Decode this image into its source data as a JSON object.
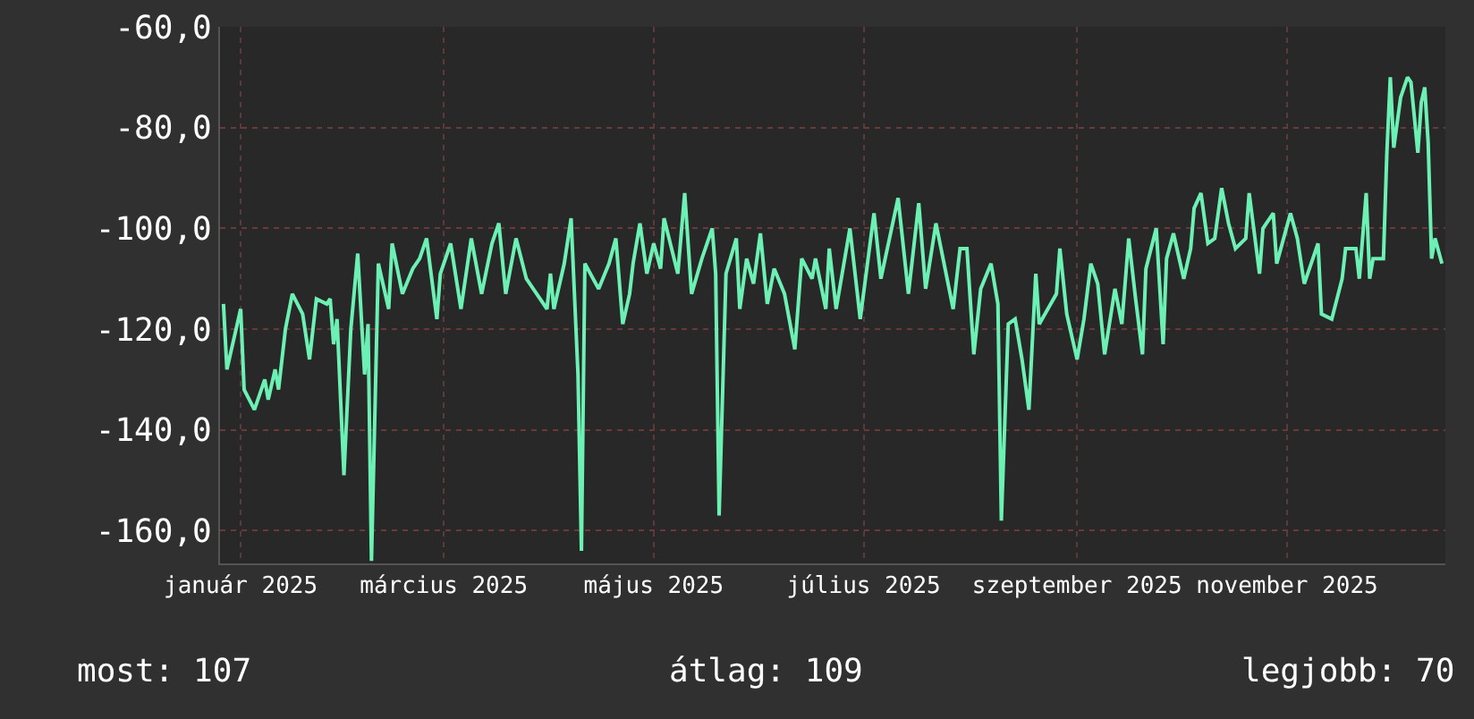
{
  "chart_data": {
    "type": "line",
    "x": [
      "2024-12-27",
      "2024-12-28",
      "2024-12-31",
      "2025-01-01",
      "2025-01-02",
      "2025-01-05",
      "2025-01-08",
      "2025-01-09",
      "2025-01-11",
      "2025-01-12",
      "2025-01-14",
      "2025-01-16",
      "2025-01-19",
      "2025-01-21",
      "2025-01-23",
      "2025-01-26",
      "2025-01-27",
      "2025-01-28",
      "2025-01-29",
      "2025-01-31",
      "2025-02-02",
      "2025-02-04",
      "2025-02-06",
      "2025-02-07",
      "2025-02-08",
      "2025-02-10",
      "2025-02-13",
      "2025-02-14",
      "2025-02-17",
      "2025-02-20",
      "2025-02-22",
      "2025-02-24",
      "2025-02-27",
      "2025-02-28",
      "2025-03-03",
      "2025-03-06",
      "2025-03-09",
      "2025-03-12",
      "2025-03-15",
      "2025-03-17",
      "2025-03-19",
      "2025-03-22",
      "2025-03-25",
      "2025-03-28",
      "2025-03-31",
      "2025-04-01",
      "2025-04-02",
      "2025-04-05",
      "2025-04-07",
      "2025-04-09",
      "2025-04-10",
      "2025-04-11",
      "2025-04-15",
      "2025-04-18",
      "2025-04-20",
      "2025-04-22",
      "2025-04-24",
      "2025-04-25",
      "2025-04-27",
      "2025-04-29",
      "2025-05-01",
      "2025-05-03",
      "2025-05-04",
      "2025-05-08",
      "2025-05-10",
      "2025-05-12",
      "2025-05-15",
      "2025-05-18",
      "2025-05-19",
      "2025-05-20",
      "2025-05-22",
      "2025-05-25",
      "2025-05-26",
      "2025-05-28",
      "2025-05-30",
      "2025-06-01",
      "2025-06-03",
      "2025-06-05",
      "2025-06-08",
      "2025-06-11",
      "2025-06-13",
      "2025-06-16",
      "2025-06-17",
      "2025-06-20",
      "2025-06-21",
      "2025-06-23",
      "2025-06-27",
      "2025-06-30",
      "2025-07-04",
      "2025-07-06",
      "2025-07-11",
      "2025-07-14",
      "2025-07-17",
      "2025-07-19",
      "2025-07-22",
      "2025-07-27",
      "2025-07-29",
      "2025-07-31",
      "2025-08-02",
      "2025-08-04",
      "2025-08-07",
      "2025-08-09",
      "2025-08-10",
      "2025-08-12",
      "2025-08-14",
      "2025-08-16",
      "2025-08-18",
      "2025-08-20",
      "2025-08-21",
      "2025-08-26",
      "2025-08-27",
      "2025-08-29",
      "2025-09-01",
      "2025-09-03",
      "2025-09-05",
      "2025-09-07",
      "2025-09-09",
      "2025-09-12",
      "2025-09-14",
      "2025-09-16",
      "2025-09-18",
      "2025-09-20",
      "2025-09-21",
      "2025-09-24",
      "2025-09-26",
      "2025-09-27",
      "2025-09-29",
      "2025-10-02",
      "2025-10-04",
      "2025-10-05",
      "2025-10-07",
      "2025-10-09",
      "2025-10-11",
      "2025-10-13",
      "2025-10-15",
      "2025-10-17",
      "2025-10-20",
      "2025-10-21",
      "2025-10-24",
      "2025-10-25",
      "2025-10-28",
      "2025-10-29",
      "2025-10-31",
      "2025-11-02",
      "2025-11-04",
      "2025-11-06",
      "2025-11-10",
      "2025-11-11",
      "2025-11-14",
      "2025-11-17",
      "2025-11-18",
      "2025-11-21",
      "2025-11-22",
      "2025-11-24",
      "2025-11-25",
      "2025-11-26",
      "2025-11-29",
      "2025-11-30",
      "2025-12-01",
      "2025-12-02",
      "2025-12-04",
      "2025-12-06",
      "2025-12-07",
      "2025-12-09",
      "2025-12-10",
      "2025-12-11",
      "2025-12-12",
      "2025-12-13",
      "2025-12-14",
      "2025-12-16"
    ],
    "series": [
      {
        "color": "#6cf0b4",
        "values": [
          -115,
          -128,
          -119,
          -116,
          -132,
          -136,
          -130,
          -134,
          -128,
          -132,
          -120,
          -113,
          -117,
          -126,
          -114,
          -115,
          -114,
          -123,
          -118,
          -149,
          -120,
          -105,
          -129,
          -119,
          -166,
          -107,
          -116,
          -103,
          -113,
          -108,
          -106,
          -102,
          -118,
          -109,
          -103,
          -116,
          -102,
          -113,
          -103,
          -99,
          -113,
          -102,
          -110,
          -113,
          -116,
          -109,
          -116,
          -107,
          -98,
          -129,
          -164,
          -107,
          -112,
          -107,
          -102,
          -119,
          -113,
          -107,
          -99,
          -109,
          -103,
          -108,
          -98,
          -109,
          -93,
          -113,
          -106,
          -100,
          -109,
          -157,
          -109,
          -102,
          -116,
          -106,
          -111,
          -101,
          -115,
          -108,
          -113,
          -124,
          -106,
          -110,
          -106,
          -116,
          -104,
          -116,
          -100,
          -118,
          -97,
          -110,
          -94,
          -113,
          -95,
          -112,
          -99,
          -116,
          -104,
          -104,
          -125,
          -112,
          -107,
          -115,
          -158,
          -119,
          -118,
          -126,
          -136,
          -109,
          -119,
          -113,
          -104,
          -117,
          -126,
          -118,
          -107,
          -111,
          -125,
          -112,
          -119,
          -102,
          -114,
          -125,
          -108,
          -100,
          -123,
          -106,
          -101,
          -110,
          -104,
          -96,
          -93,
          -103,
          -102,
          -92,
          -99,
          -104,
          -102,
          -93,
          -109,
          -100,
          -97,
          -107,
          -102,
          -97,
          -102,
          -111,
          -103,
          -117,
          -118,
          -110,
          -104,
          -104,
          -110,
          -93,
          -110,
          -106,
          -106,
          -85,
          -70,
          -84,
          -74,
          -70,
          -71,
          -85,
          -75,
          -72,
          -83,
          -106,
          -102,
          -107
        ]
      }
    ],
    "xlim": [
      "2024-12-26",
      "2025-12-17"
    ],
    "xticks": [
      {
        "value": "2025-01-01",
        "label": "január 2025"
      },
      {
        "value": "2025-03-01",
        "label": "március 2025"
      },
      {
        "value": "2025-05-01",
        "label": "május 2025"
      },
      {
        "value": "2025-07-01",
        "label": "július 2025"
      },
      {
        "value": "2025-09-01",
        "label": "szeptember 2025"
      },
      {
        "value": "2025-11-01",
        "label": "november 2025"
      }
    ],
    "ylim": [
      -166.5,
      -60
    ],
    "yticks": [
      {
        "value": -60,
        "label": "-60,0"
      },
      {
        "value": -80,
        "label": "-80,0"
      },
      {
        "value": -100,
        "label": "-100,0"
      },
      {
        "value": -120,
        "label": "-120,0"
      },
      {
        "value": -140,
        "label": "-140,0"
      },
      {
        "value": -160,
        "label": "-160,0"
      }
    ],
    "grid": true,
    "annotations": [
      "most: 107",
      "átlag: 109",
      "legjobb: 70"
    ]
  }
}
